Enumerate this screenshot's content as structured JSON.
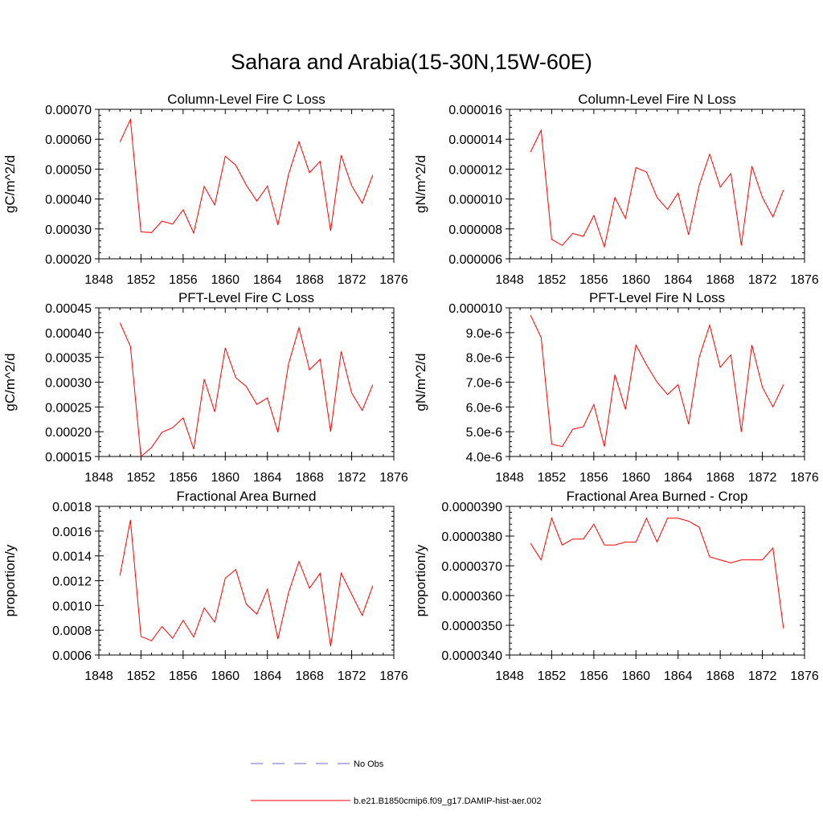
{
  "title": "Sahara and Arabia(15-30N,15W-60E)",
  "colors": {
    "model_line": "#ff0000",
    "obs_line": "#6a6ad6",
    "axis": "#000000"
  },
  "legend": {
    "items": [
      {
        "label": "No Obs",
        "style": "dashed",
        "color": "#6a6ad6"
      },
      {
        "label": "b.e21.B1850cmip6.f09_g17.DAMIP-hist-aer.002",
        "style": "solid",
        "color": "#ff0000"
      }
    ]
  },
  "chart_data": [
    {
      "type": "line",
      "title": "Column-Level Fire C Loss",
      "ylabel": "gC/m^2/d",
      "xlim": [
        1848,
        1876
      ],
      "ylim": [
        0.0002,
        0.0007
      ],
      "xticks": [
        "1848",
        "1852",
        "1856",
        "1860",
        "1864",
        "1868",
        "1872",
        "1876"
      ],
      "yticks": [
        "0.00020",
        "0.00030",
        "0.00040",
        "0.00050",
        "0.00060",
        "0.00070"
      ],
      "x": [
        1850,
        1851,
        1852,
        1853,
        1854,
        1855,
        1856,
        1857,
        1858,
        1859,
        1860,
        1861,
        1862,
        1863,
        1864,
        1865,
        1866,
        1867,
        1868,
        1869,
        1870,
        1871,
        1872,
        1873,
        1874
      ],
      "series": [
        {
          "name": "b.e21.B1850cmip6.f09_g17.DAMIP-hist-aer.002",
          "values": [
            0.00059,
            0.000666,
            0.00029,
            0.000288,
            0.000326,
            0.000316,
            0.000364,
            0.000286,
            0.000442,
            0.00038,
            0.000543,
            0.000513,
            0.000446,
            0.000393,
            0.000443,
            0.000313,
            0.000481,
            0.000592,
            0.000488,
            0.000526,
            0.000293,
            0.000546,
            0.000444,
            0.000386,
            0.00048
          ]
        }
      ]
    },
    {
      "type": "line",
      "title": "Column-Level Fire N Loss",
      "ylabel": "gN/m^2/d",
      "xlim": [
        1848,
        1876
      ],
      "ylim": [
        6e-06,
        1.6e-05
      ],
      "xticks": [
        "1848",
        "1852",
        "1856",
        "1860",
        "1864",
        "1868",
        "1872",
        "1876"
      ],
      "yticks": [
        "0.000006",
        "0.000008",
        "0.000010",
        "0.000012",
        "0.000014",
        "0.000016"
      ],
      "x": [
        1850,
        1851,
        1852,
        1853,
        1854,
        1855,
        1856,
        1857,
        1858,
        1859,
        1860,
        1861,
        1862,
        1863,
        1864,
        1865,
        1866,
        1867,
        1868,
        1869,
        1870,
        1871,
        1872,
        1873,
        1874
      ],
      "series": [
        {
          "name": "b.e21.B1850cmip6.f09_g17.DAMIP-hist-aer.002",
          "values": [
            1.315e-05,
            1.46e-05,
            7.3e-06,
            6.9e-06,
            7.7e-06,
            7.5e-06,
            8.9e-06,
            6.8e-06,
            1.01e-05,
            8.7e-06,
            1.21e-05,
            1.18e-05,
            1.01e-05,
            9.3e-06,
            1.04e-05,
            7.6e-06,
            1.09e-05,
            1.3e-05,
            1.08e-05,
            1.17e-05,
            6.9e-06,
            1.22e-05,
            1.01e-05,
            8.8e-06,
            1.06e-05
          ]
        }
      ]
    },
    {
      "type": "line",
      "title": "PFT-Level Fire C Loss",
      "ylabel": "gC/m^2/d",
      "xlim": [
        1848,
        1876
      ],
      "ylim": [
        0.00015,
        0.00045
      ],
      "xticks": [
        "1848",
        "1852",
        "1856",
        "1860",
        "1864",
        "1868",
        "1872",
        "1876"
      ],
      "yticks": [
        "0.00015",
        "0.00020",
        "0.00025",
        "0.00030",
        "0.00035",
        "0.00040",
        "0.00045"
      ],
      "x": [
        1850,
        1851,
        1852,
        1853,
        1854,
        1855,
        1856,
        1857,
        1858,
        1859,
        1860,
        1861,
        1862,
        1863,
        1864,
        1865,
        1866,
        1867,
        1868,
        1869,
        1870,
        1871,
        1872,
        1873,
        1874
      ],
      "series": [
        {
          "name": "b.e21.B1850cmip6.f09_g17.DAMIP-hist-aer.002",
          "values": [
            0.00042,
            0.000372,
            0.00015,
            0.000168,
            0.000199,
            0.000208,
            0.000228,
            0.000165,
            0.000306,
            0.00024,
            0.000369,
            0.000309,
            0.000291,
            0.000255,
            0.000268,
            0.000199,
            0.000336,
            0.00041,
            0.000325,
            0.000346,
            0.0002,
            0.000362,
            0.000278,
            0.000243,
            0.000295
          ]
        }
      ]
    },
    {
      "type": "line",
      "title": "PFT-Level Fire N Loss",
      "ylabel": "gN/m^2/d",
      "xlim": [
        1848,
        1876
      ],
      "ylim": [
        4e-06,
        1e-05
      ],
      "xticks": [
        "1848",
        "1852",
        "1856",
        "1860",
        "1864",
        "1868",
        "1872",
        "1876"
      ],
      "yticks": [
        "4.0e-6",
        "5.0e-6",
        "6.0e-6",
        "7.0e-6",
        "8.0e-6",
        "9.0e-6",
        "0.000010"
      ],
      "x": [
        1850,
        1851,
        1852,
        1853,
        1854,
        1855,
        1856,
        1857,
        1858,
        1859,
        1860,
        1861,
        1862,
        1863,
        1864,
        1865,
        1866,
        1867,
        1868,
        1869,
        1870,
        1871,
        1872,
        1873,
        1874
      ],
      "series": [
        {
          "name": "b.e21.B1850cmip6.f09_g17.DAMIP-hist-aer.002",
          "values": [
            9.7e-06,
            8.8e-06,
            4.5e-06,
            4.4e-06,
            5.1e-06,
            5.2e-06,
            6.1e-06,
            4.4e-06,
            7.3e-06,
            5.9e-06,
            8.5e-06,
            7.7e-06,
            7e-06,
            6.5e-06,
            6.9e-06,
            5.3e-06,
            8e-06,
            9.3e-06,
            7.6e-06,
            8.1e-06,
            5e-06,
            8.5e-06,
            6.8e-06,
            6e-06,
            6.9e-06
          ]
        }
      ]
    },
    {
      "type": "line",
      "title": "Fractional Area Burned",
      "ylabel": "proportion/y",
      "xlim": [
        1848,
        1876
      ],
      "ylim": [
        0.0006,
        0.0018
      ],
      "xticks": [
        "1848",
        "1852",
        "1856",
        "1860",
        "1864",
        "1868",
        "1872",
        "1876"
      ],
      "yticks": [
        "0.0006",
        "0.0008",
        "0.0010",
        "0.0012",
        "0.0014",
        "0.0016",
        "0.0018"
      ],
      "x": [
        1850,
        1851,
        1852,
        1853,
        1854,
        1855,
        1856,
        1857,
        1858,
        1859,
        1860,
        1861,
        1862,
        1863,
        1864,
        1865,
        1866,
        1867,
        1868,
        1869,
        1870,
        1871,
        1872,
        1873,
        1874
      ],
      "series": [
        {
          "name": "b.e21.B1850cmip6.f09_g17.DAMIP-hist-aer.002",
          "values": [
            0.00124,
            0.00169,
            0.00075,
            0.000715,
            0.00083,
            0.000735,
            0.00088,
            0.000745,
            0.00098,
            0.000865,
            0.00122,
            0.00129,
            0.00101,
            0.00093,
            0.00113,
            0.00073,
            0.0011,
            0.001355,
            0.00114,
            0.00126,
            0.00067,
            0.00126,
            0.00109,
            0.00092,
            0.00116
          ]
        }
      ]
    },
    {
      "type": "line",
      "title": "Fractional Area Burned - Crop",
      "ylabel": "proportion/y",
      "xlim": [
        1848,
        1876
      ],
      "ylim": [
        3.4e-05,
        3.9e-05
      ],
      "xticks": [
        "1848",
        "1852",
        "1856",
        "1860",
        "1864",
        "1868",
        "1872",
        "1876"
      ],
      "yticks": [
        "0.0000340",
        "0.0000350",
        "0.0000360",
        "0.0000370",
        "0.0000380",
        "0.0000390"
      ],
      "x": [
        1850,
        1851,
        1852,
        1853,
        1854,
        1855,
        1856,
        1857,
        1858,
        1859,
        1860,
        1861,
        1862,
        1863,
        1864,
        1865,
        1866,
        1867,
        1868,
        1869,
        1870,
        1871,
        1872,
        1873,
        1874
      ],
      "series": [
        {
          "name": "b.e21.B1850cmip6.f09_g17.DAMIP-hist-aer.002",
          "values": [
            3.775e-05,
            3.72e-05,
            3.86e-05,
            3.77e-05,
            3.79e-05,
            3.79e-05,
            3.84e-05,
            3.77e-05,
            3.77e-05,
            3.78e-05,
            3.78e-05,
            3.86e-05,
            3.78e-05,
            3.86e-05,
            3.86e-05,
            3.85e-05,
            3.83e-05,
            3.73e-05,
            3.72e-05,
            3.71e-05,
            3.72e-05,
            3.72e-05,
            3.72e-05,
            3.76e-05,
            3.49e-05
          ]
        }
      ]
    }
  ]
}
